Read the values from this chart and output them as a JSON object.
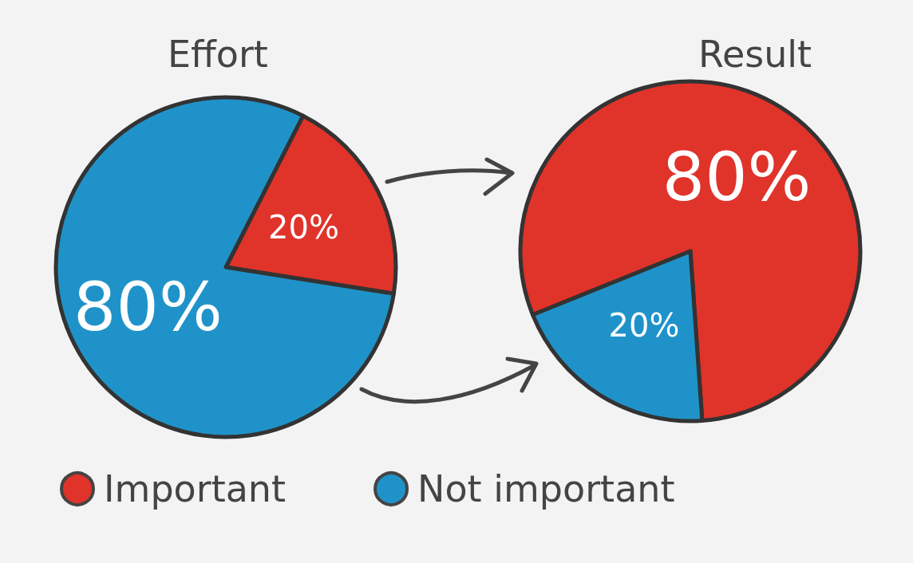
{
  "chart_data": [
    {
      "type": "pie",
      "title": "Effort",
      "categories": [
        "Important",
        "Not important"
      ],
      "values": [
        20,
        80
      ],
      "colors": [
        "#e0332a",
        "#1f93c9"
      ],
      "value_labels": [
        "20%",
        "80%"
      ],
      "legend": "bottom"
    },
    {
      "type": "pie",
      "title": "Result",
      "categories": [
        null,
        null
      ],
      "values": [
        80,
        20
      ],
      "colors": [
        "#e0332a",
        "#1f93c9"
      ],
      "value_labels": [
        "80%",
        "20%"
      ]
    }
  ]
}
